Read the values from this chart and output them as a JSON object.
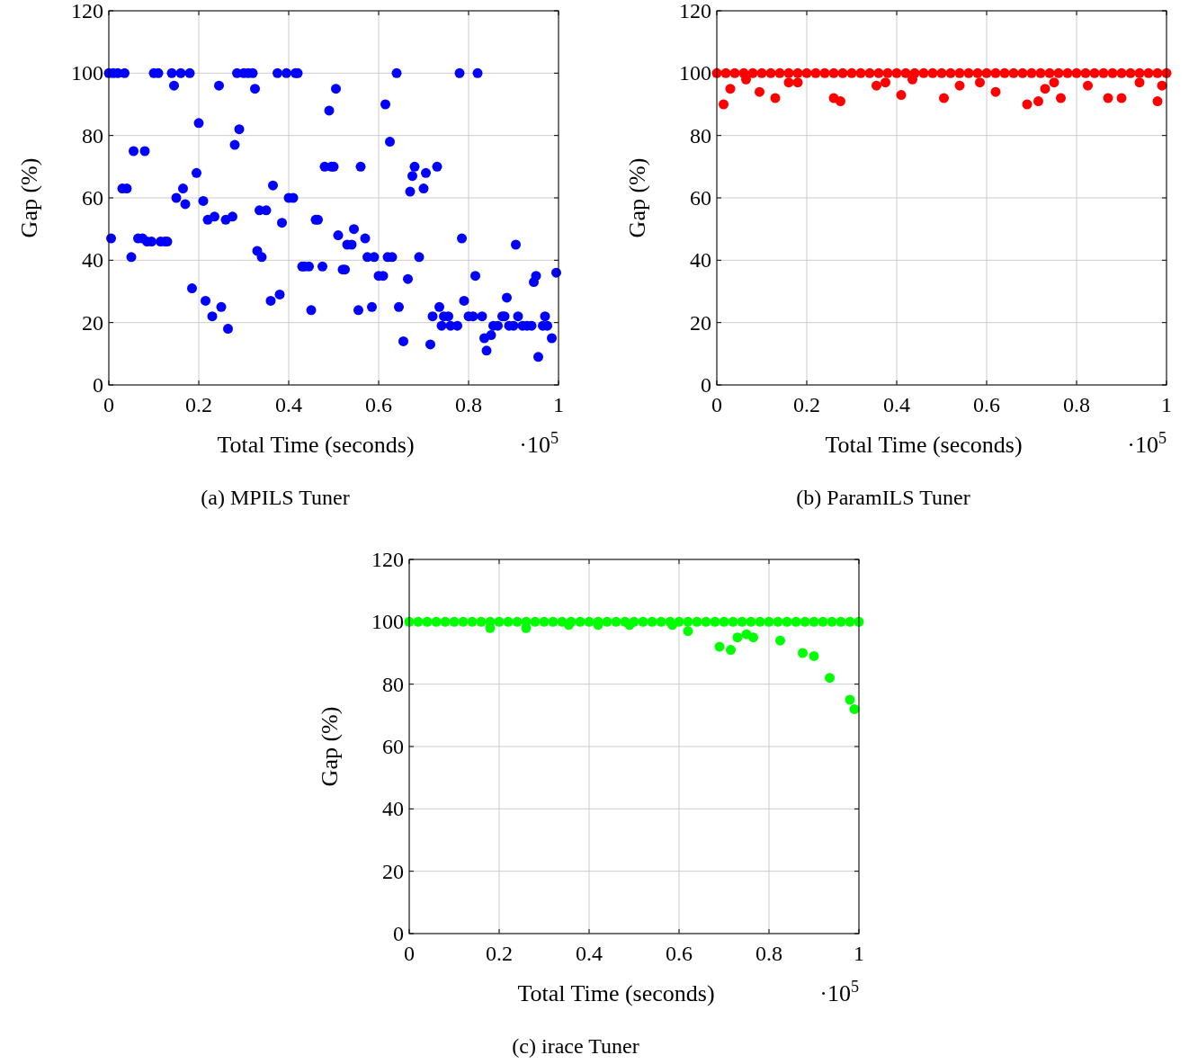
{
  "chart_data": [
    {
      "type": "scatter",
      "title": "(a) MPILS Tuner",
      "xlabel": "Total Time (seconds)",
      "ylabel": "Gap (%)",
      "color": "#0000ff",
      "marker": "circle",
      "grid": true,
      "annotations": [
        "·10$^{5}$"
      ],
      "xlim": [
        0,
        1
      ],
      "ylim": [
        0,
        120
      ],
      "xticks": [
        0,
        0.2,
        0.4,
        0.6,
        0.8,
        1
      ],
      "yticks": [
        0,
        20,
        40,
        60,
        80,
        100,
        120
      ],
      "x": [
        0,
        0.005,
        0.01,
        0.02,
        0.03,
        0.035,
        0.04,
        0.05,
        0.055,
        0.065,
        0.075,
        0.08,
        0.085,
        0.095,
        0.1,
        0.11,
        0.115,
        0.125,
        0.13,
        0.14,
        0.145,
        0.15,
        0.16,
        0.165,
        0.17,
        0.18,
        0.185,
        0.195,
        0.2,
        0.21,
        0.215,
        0.22,
        0.23,
        0.235,
        0.245,
        0.25,
        0.26,
        0.265,
        0.275,
        0.28,
        0.285,
        0.29,
        0.3,
        0.31,
        0.32,
        0.325,
        0.33,
        0.335,
        0.34,
        0.35,
        0.36,
        0.365,
        0.375,
        0.38,
        0.385,
        0.395,
        0.4,
        0.41,
        0.415,
        0.42,
        0.43,
        0.435,
        0.445,
        0.45,
        0.46,
        0.465,
        0.475,
        0.48,
        0.49,
        0.495,
        0.5,
        0.505,
        0.51,
        0.52,
        0.525,
        0.53,
        0.54,
        0.545,
        0.555,
        0.56,
        0.57,
        0.575,
        0.585,
        0.59,
        0.6,
        0.61,
        0.615,
        0.62,
        0.625,
        0.63,
        0.64,
        0.645,
        0.655,
        0.665,
        0.67,
        0.675,
        0.68,
        0.69,
        0.7,
        0.705,
        0.715,
        0.72,
        0.73,
        0.735,
        0.74,
        0.745,
        0.755,
        0.76,
        0.775,
        0.78,
        0.785,
        0.79,
        0.8,
        0.81,
        0.815,
        0.82,
        0.83,
        0.835,
        0.84,
        0.85,
        0.855,
        0.865,
        0.875,
        0.88,
        0.885,
        0.89,
        0.9,
        0.905,
        0.91,
        0.92,
        0.93,
        0.94,
        0.945,
        0.95,
        0.955,
        0.965,
        0.97,
        0.975,
        0.985,
        0.995
      ],
      "values": [
        100,
        47,
        100,
        100,
        63,
        100,
        63,
        41,
        75,
        47,
        47,
        75,
        46,
        46,
        100,
        100,
        46,
        46,
        46,
        100,
        96,
        60,
        100,
        63,
        58,
        100,
        31,
        68,
        84,
        59,
        27,
        53,
        22,
        54,
        96,
        25,
        53,
        18,
        54,
        77,
        100,
        82,
        100,
        100,
        100,
        95,
        43,
        56,
        41,
        56,
        27,
        64,
        100,
        29,
        52,
        100,
        60,
        60,
        100,
        100,
        38,
        38,
        38,
        24,
        53,
        53,
        38,
        70,
        88,
        70,
        70,
        95,
        48,
        37,
        37,
        45,
        45,
        50,
        24,
        70,
        47,
        41,
        25,
        41,
        35,
        35,
        90,
        41,
        78,
        41,
        100,
        25,
        14,
        34,
        62,
        67,
        70,
        41,
        63,
        68,
        13,
        22,
        70,
        25,
        19,
        22,
        22,
        19,
        19,
        100,
        47,
        27,
        22,
        22,
        35,
        100,
        22,
        15,
        11,
        16,
        19,
        19,
        22,
        22,
        28,
        19,
        19,
        45,
        22,
        19,
        19,
        19,
        33,
        35,
        9,
        19,
        22,
        19,
        15,
        36
      ]
    },
    {
      "type": "scatter",
      "title": "(b) ParamILS Tuner",
      "xlabel": "Total Time (seconds)",
      "ylabel": "Gap (%)",
      "color": "#ff0000",
      "marker": "circle",
      "grid": true,
      "annotations": [
        "·10$^{5}$"
      ],
      "xlim": [
        0,
        1
      ],
      "ylim": [
        0,
        120
      ],
      "xticks": [
        0,
        0.2,
        0.4,
        0.6,
        0.8,
        1
      ],
      "yticks": [
        0,
        20,
        40,
        60,
        80,
        100,
        120
      ],
      "x": [
        0,
        0.02,
        0.04,
        0.06,
        0.08,
        0.1,
        0.12,
        0.14,
        0.16,
        0.18,
        0.2,
        0.22,
        0.24,
        0.26,
        0.28,
        0.3,
        0.32,
        0.34,
        0.36,
        0.38,
        0.4,
        0.42,
        0.44,
        0.46,
        0.48,
        0.5,
        0.52,
        0.54,
        0.56,
        0.58,
        0.6,
        0.62,
        0.64,
        0.66,
        0.68,
        0.7,
        0.72,
        0.74,
        0.76,
        0.78,
        0.8,
        0.82,
        0.84,
        0.86,
        0.88,
        0.9,
        0.92,
        0.94,
        0.96,
        0.98,
        1,
        0.015,
        0.03,
        0.065,
        0.095,
        0.13,
        0.16,
        0.18,
        0.26,
        0.275,
        0.355,
        0.375,
        0.41,
        0.435,
        0.505,
        0.54,
        0.585,
        0.62,
        0.69,
        0.715,
        0.73,
        0.75,
        0.765,
        0.825,
        0.87,
        0.9,
        0.94,
        0.98,
        0.99
      ],
      "values": [
        100,
        100,
        100,
        100,
        100,
        100,
        100,
        100,
        100,
        100,
        100,
        100,
        100,
        100,
        100,
        100,
        100,
        100,
        100,
        100,
        100,
        100,
        100,
        100,
        100,
        100,
        100,
        100,
        100,
        100,
        100,
        100,
        100,
        100,
        100,
        100,
        100,
        100,
        100,
        100,
        100,
        100,
        100,
        100,
        100,
        100,
        100,
        100,
        100,
        100,
        100,
        90,
        95,
        98,
        94,
        92,
        97,
        97,
        92,
        91,
        96,
        97,
        93,
        98,
        92,
        96,
        97,
        94,
        90,
        91,
        95,
        97,
        92,
        96,
        92,
        92,
        97,
        91,
        96
      ]
    },
    {
      "type": "scatter",
      "title": "(c) irace Tuner",
      "xlabel": "Total Time (seconds)",
      "ylabel": "Gap (%)",
      "color": "#00ff00",
      "marker": "circle",
      "grid": true,
      "annotations": [
        "·10$^{5}$"
      ],
      "xlim": [
        0,
        1
      ],
      "ylim": [
        0,
        120
      ],
      "xticks": [
        0,
        0.2,
        0.4,
        0.6,
        0.8,
        1
      ],
      "yticks": [
        0,
        20,
        40,
        60,
        80,
        100,
        120
      ],
      "x": [
        0,
        0.02,
        0.04,
        0.06,
        0.08,
        0.1,
        0.12,
        0.14,
        0.16,
        0.18,
        0.2,
        0.22,
        0.24,
        0.26,
        0.28,
        0.3,
        0.32,
        0.34,
        0.36,
        0.38,
        0.4,
        0.42,
        0.44,
        0.46,
        0.48,
        0.5,
        0.52,
        0.54,
        0.56,
        0.58,
        0.6,
        0.62,
        0.64,
        0.66,
        0.68,
        0.7,
        0.72,
        0.74,
        0.76,
        0.78,
        0.8,
        0.82,
        0.84,
        0.86,
        0.88,
        0.9,
        0.92,
        0.94,
        0.96,
        0.98,
        1,
        0.18,
        0.26,
        0.355,
        0.42,
        0.49,
        0.585,
        0.62,
        0.69,
        0.715,
        0.73,
        0.75,
        0.765,
        0.825,
        0.875,
        0.9,
        0.935,
        0.98,
        0.99
      ],
      "values": [
        100,
        100,
        100,
        100,
        100,
        100,
        100,
        100,
        100,
        100,
        100,
        100,
        100,
        100,
        100,
        100,
        100,
        100,
        100,
        100,
        100,
        100,
        100,
        100,
        100,
        100,
        100,
        100,
        100,
        100,
        100,
        100,
        100,
        100,
        100,
        100,
        100,
        100,
        100,
        100,
        100,
        100,
        100,
        100,
        100,
        100,
        100,
        100,
        100,
        100,
        100,
        98,
        98,
        99,
        99,
        99,
        99,
        97,
        92,
        91,
        95,
        96,
        95,
        94,
        90,
        89,
        82,
        75,
        72
      ]
    }
  ]
}
